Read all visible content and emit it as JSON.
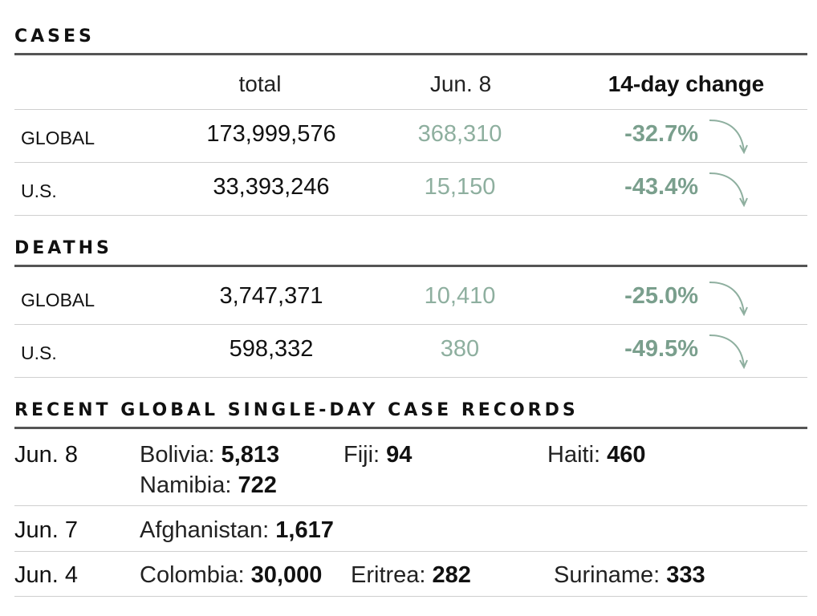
{
  "cases": {
    "title": "CASES",
    "headers": {
      "total": "total",
      "date": "Jun. 8",
      "change": "14-day change"
    },
    "rows": [
      {
        "label": "GLOBAL",
        "total": "173,999,576",
        "daily": "368,310",
        "change": "-32.7%"
      },
      {
        "label": "U.S.",
        "total": "33,393,246",
        "daily": "15,150",
        "change": "-43.4%"
      }
    ]
  },
  "deaths": {
    "title": "DEATHS",
    "rows": [
      {
        "label": "GLOBAL",
        "total": "3,747,371",
        "daily": "10,410",
        "change": "-25.0%"
      },
      {
        "label": "U.S.",
        "total": "598,332",
        "daily": "380",
        "change": "-49.5%"
      }
    ]
  },
  "records": {
    "title": "RECENT GLOBAL SINGLE-DAY CASE RECORDS",
    "rows": [
      {
        "date": "Jun. 8",
        "items": [
          {
            "country": "Bolivia:",
            "value": "5,813"
          },
          {
            "country": "Fiji:",
            "value": "94"
          },
          {
            "country": "Haiti:",
            "value": "460"
          },
          {
            "country": "Namibia:",
            "value": "722"
          }
        ]
      },
      {
        "date": "Jun. 7",
        "items": [
          {
            "country": "Afghanistan:",
            "value": "1,617"
          }
        ]
      },
      {
        "date": "Jun. 4",
        "items": [
          {
            "country": "Colombia:",
            "value": "30,000"
          },
          {
            "country": "Eritrea:",
            "value": "282"
          },
          {
            "country": "Suriname:",
            "value": "333"
          }
        ]
      }
    ]
  },
  "colors": {
    "trend": "#7a9f8d",
    "daily": "#8eaf9f",
    "rule": "#555555"
  },
  "icons": {
    "trend": "curved-down-arrow-icon"
  }
}
